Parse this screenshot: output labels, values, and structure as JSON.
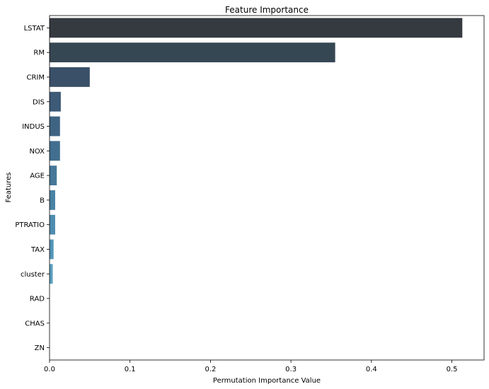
{
  "chart_data": {
    "type": "bar",
    "orientation": "horizontal",
    "title": "Feature Importance",
    "xlabel": "Permutation Importance Value",
    "ylabel": "Features",
    "categories": [
      "LSTAT",
      "RM",
      "CRIM",
      "DIS",
      "INDUS",
      "NOX",
      "AGE",
      "B",
      "PTRATIO",
      "TAX",
      "cluster",
      "RAD",
      "CHAS",
      "ZN"
    ],
    "values": [
      0.513,
      0.355,
      0.05,
      0.014,
      0.013,
      0.013,
      0.009,
      0.007,
      0.007,
      0.005,
      0.004,
      0.0,
      0.0,
      0.0
    ],
    "colors": [
      "#343a40",
      "#364754",
      "#3a5068",
      "#3d5a77",
      "#3f6483",
      "#426e8f",
      "#46789a",
      "#4982a5",
      "#4e8caf",
      "#5496b8",
      "#5a9fc0",
      "#60a8c8",
      "#67b1cf",
      "#6ebad6"
    ],
    "xlim": [
      0,
      0.54
    ],
    "xticks": [
      0,
      0.1,
      0.2,
      0.3,
      0.4,
      0.5
    ],
    "xtick_labels": [
      "0.0",
      "0.1",
      "0.2",
      "0.3",
      "0.4",
      "0.5"
    ],
    "grid": false,
    "legend": "none"
  }
}
